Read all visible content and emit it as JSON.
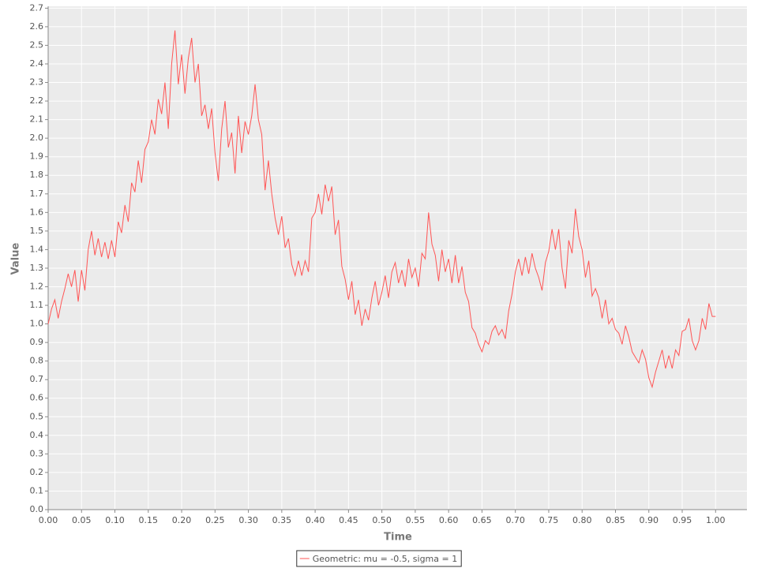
{
  "chart_data": {
    "type": "line",
    "x_label": "Time",
    "y_label": "Value",
    "xlim": [
      0,
      1.047
    ],
    "ylim": [
      0,
      2.71
    ],
    "grid": true,
    "legend": "bottom",
    "xticks": [
      {
        "value": 0,
        "label": "0.00"
      },
      0.05,
      {
        "value": 0.1,
        "label": "0.10"
      },
      0.15,
      {
        "value": 0.2,
        "label": "0.20"
      },
      0.25,
      {
        "value": 0.3,
        "label": "0.30"
      },
      0.35,
      {
        "value": 0.4,
        "label": "0.40"
      },
      0.45,
      {
        "value": 0.5,
        "label": "0.50"
      },
      0.55,
      {
        "value": 0.6,
        "label": "0.60"
      },
      0.65,
      {
        "value": 0.7,
        "label": "0.70"
      },
      0.75,
      {
        "value": 0.8,
        "label": "0.80"
      },
      0.85,
      {
        "value": 0.9,
        "label": "0.90"
      },
      0.95,
      {
        "value": 1,
        "label": "1.00"
      }
    ],
    "yticks": [
      {
        "value": 0,
        "label": "0.0"
      },
      0.1,
      0.2,
      0.3,
      0.4,
      0.5,
      0.6,
      0.7,
      0.8,
      0.9,
      {
        "value": 1,
        "label": "1.0"
      },
      1.1,
      1.2,
      1.3,
      1.4,
      1.5,
      1.6,
      1.7,
      1.8,
      1.9,
      {
        "value": 2,
        "label": "2.0"
      },
      2.1,
      2.2,
      2.3,
      2.4,
      2.5,
      2.6,
      2.7
    ],
    "x": [
      0,
      0.005,
      0.01,
      0.015,
      0.02,
      0.025,
      0.03,
      0.035,
      0.04,
      0.045,
      0.05,
      0.055,
      0.06,
      0.065,
      0.07,
      0.075,
      0.08,
      0.085,
      0.09,
      0.095,
      0.1,
      0.105,
      0.11,
      0.115,
      0.12,
      0.125,
      0.13,
      0.135,
      0.14,
      0.145,
      0.15,
      0.155,
      0.16,
      0.165,
      0.17,
      0.175,
      0.18,
      0.185,
      0.19,
      0.195,
      0.2,
      0.205,
      0.21,
      0.215,
      0.22,
      0.225,
      0.23,
      0.235,
      0.24,
      0.245,
      0.25,
      0.255,
      0.26,
      0.265,
      0.27,
      0.275,
      0.28,
      0.285,
      0.29,
      0.295,
      0.3,
      0.305,
      0.31,
      0.315,
      0.32,
      0.325,
      0.33,
      0.335,
      0.34,
      0.345,
      0.35,
      0.355,
      0.36,
      0.365,
      0.37,
      0.375,
      0.38,
      0.385,
      0.39,
      0.395,
      0.4,
      0.405,
      0.41,
      0.415,
      0.42,
      0.425,
      0.43,
      0.435,
      0.44,
      0.445,
      0.45,
      0.455,
      0.46,
      0.465,
      0.47,
      0.475,
      0.48,
      0.485,
      0.49,
      0.495,
      0.5,
      0.505,
      0.51,
      0.515,
      0.52,
      0.525,
      0.53,
      0.535,
      0.54,
      0.545,
      0.55,
      0.555,
      0.56,
      0.565,
      0.57,
      0.575,
      0.58,
      0.585,
      0.59,
      0.595,
      0.6,
      0.605,
      0.61,
      0.615,
      0.62,
      0.625,
      0.63,
      0.635,
      0.64,
      0.645,
      0.65,
      0.655,
      0.66,
      0.665,
      0.67,
      0.675,
      0.68,
      0.685,
      0.69,
      0.695,
      0.7,
      0.705,
      0.71,
      0.715,
      0.72,
      0.725,
      0.73,
      0.735,
      0.74,
      0.745,
      0.75,
      0.755,
      0.76,
      0.765,
      0.77,
      0.775,
      0.78,
      0.785,
      0.79,
      0.795,
      0.8,
      0.805,
      0.81,
      0.815,
      0.82,
      0.825,
      0.83,
      0.835,
      0.84,
      0.845,
      0.85,
      0.855,
      0.86,
      0.865,
      0.87,
      0.875,
      0.88,
      0.885,
      0.89,
      0.895,
      0.9,
      0.905,
      0.91,
      0.915,
      0.92,
      0.925,
      0.93,
      0.935,
      0.94,
      0.945,
      0.95,
      0.955,
      0.96,
      0.965,
      0.97,
      0.975,
      0.98,
      0.985,
      0.99,
      0.995,
      1
    ],
    "series": [
      {
        "name": "Geometric: mu = -0.5, sigma = 1",
        "color": "#ff5555",
        "values": [
          1.0,
          1.08,
          1.13,
          1.03,
          1.12,
          1.19,
          1.27,
          1.2,
          1.29,
          1.12,
          1.29,
          1.18,
          1.4,
          1.5,
          1.37,
          1.46,
          1.36,
          1.44,
          1.35,
          1.45,
          1.36,
          1.55,
          1.49,
          1.64,
          1.55,
          1.76,
          1.71,
          1.88,
          1.76,
          1.94,
          1.98,
          2.1,
          2.02,
          2.21,
          2.13,
          2.3,
          2.05,
          2.4,
          2.58,
          2.29,
          2.45,
          2.24,
          2.43,
          2.54,
          2.3,
          2.4,
          2.12,
          2.18,
          2.05,
          2.16,
          1.92,
          1.77,
          2.05,
          2.2,
          1.95,
          2.03,
          1.81,
          2.12,
          1.92,
          2.09,
          2.02,
          2.12,
          2.29,
          2.1,
          2.02,
          1.72,
          1.88,
          1.7,
          1.57,
          1.48,
          1.58,
          1.41,
          1.46,
          1.32,
          1.26,
          1.34,
          1.26,
          1.34,
          1.28,
          1.57,
          1.6,
          1.7,
          1.59,
          1.75,
          1.66,
          1.74,
          1.48,
          1.56,
          1.31,
          1.24,
          1.13,
          1.23,
          1.05,
          1.13,
          0.99,
          1.08,
          1.02,
          1.14,
          1.23,
          1.1,
          1.17,
          1.26,
          1.14,
          1.28,
          1.33,
          1.22,
          1.29,
          1.2,
          1.35,
          1.25,
          1.3,
          1.2,
          1.38,
          1.35,
          1.6,
          1.43,
          1.37,
          1.23,
          1.4,
          1.28,
          1.35,
          1.22,
          1.37,
          1.22,
          1.31,
          1.17,
          1.12,
          0.98,
          0.95,
          0.89,
          0.85,
          0.91,
          0.89,
          0.96,
          0.99,
          0.94,
          0.97,
          0.92,
          1.07,
          1.16,
          1.28,
          1.35,
          1.26,
          1.36,
          1.27,
          1.38,
          1.3,
          1.25,
          1.18,
          1.33,
          1.39,
          1.51,
          1.4,
          1.51,
          1.3,
          1.19,
          1.45,
          1.38,
          1.62,
          1.47,
          1.4,
          1.25,
          1.34,
          1.15,
          1.19,
          1.14,
          1.03,
          1.13,
          1.0,
          1.03,
          0.97,
          0.95,
          0.89,
          0.99,
          0.93,
          0.85,
          0.82,
          0.79,
          0.86,
          0.81,
          0.71,
          0.66,
          0.74,
          0.8,
          0.86,
          0.76,
          0.83,
          0.76,
          0.86,
          0.83,
          0.96,
          0.97,
          1.03,
          0.91,
          0.86,
          0.91,
          1.03,
          0.97,
          1.11,
          1.04,
          1.04
        ]
      }
    ]
  }
}
